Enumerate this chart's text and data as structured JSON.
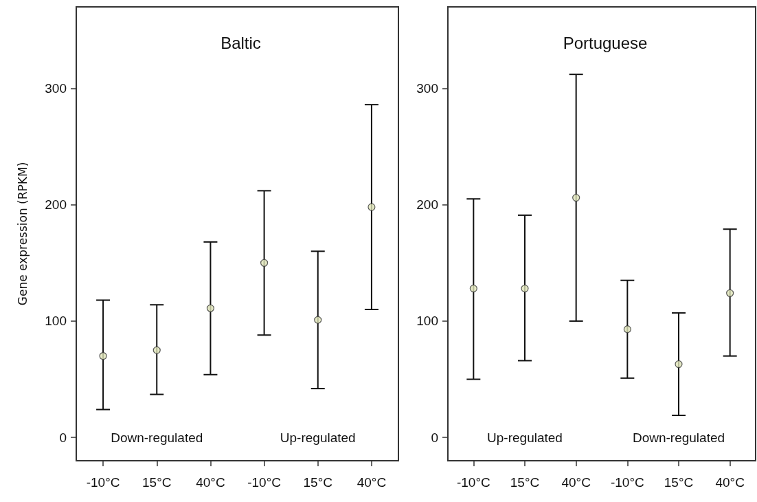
{
  "chart_data": [
    {
      "type": "scatter",
      "title": "Baltic",
      "ylabel": "Gene expression (RPKM)",
      "categories": [
        "-10°C",
        "15°C",
        "40°C",
        "-10°C",
        "15°C",
        "40°C"
      ],
      "values": [
        70,
        75,
        111,
        150,
        101,
        198
      ],
      "color": "#dfe4b8",
      "errors": [
        [
          24,
          118
        ],
        [
          37,
          114
        ],
        [
          54,
          168
        ],
        [
          88,
          212
        ],
        [
          42,
          160
        ],
        [
          110,
          286
        ]
      ],
      "annotations": [
        "Down-regulated",
        "Up-regulated"
      ],
      "ylim": [
        -20,
        370
      ],
      "yticks": [
        0,
        100,
        200,
        300
      ],
      "grid": false,
      "marker": "circle"
    },
    {
      "type": "scatter",
      "title": "Portuguese",
      "categories": [
        "-10°C",
        "15°C",
        "40°C",
        "-10°C",
        "15°C",
        "40°C"
      ],
      "values": [
        128,
        128,
        206,
        93,
        63,
        124
      ],
      "color": "#dfe4b8",
      "errors": [
        [
          50,
          205
        ],
        [
          66,
          191
        ],
        [
          100,
          312
        ],
        [
          51,
          135
        ],
        [
          19,
          107
        ],
        [
          70,
          179
        ]
      ],
      "annotations": [
        "Up-regulated",
        "Down-regulated"
      ],
      "ylim": [
        -20,
        370
      ],
      "yticks": [
        0,
        100,
        200,
        300
      ],
      "grid": false,
      "marker": "circle"
    }
  ]
}
